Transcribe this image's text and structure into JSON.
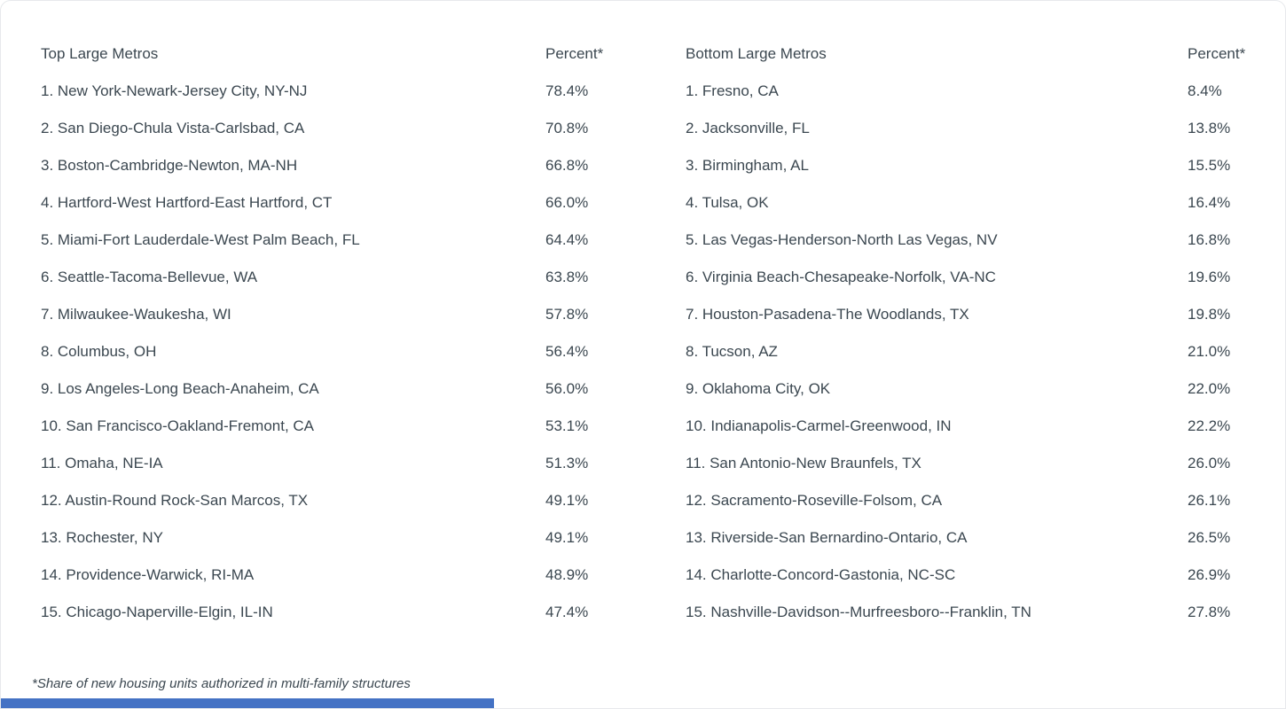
{
  "colors": {
    "text": "#3b4750",
    "accent_bar": "#4472c4",
    "card_border": "#e7e9ec",
    "background": "#ffffff"
  },
  "chart_data": {
    "type": "table",
    "tables": [
      {
        "name_header": "Top Large Metros",
        "percent_header": "Percent*",
        "rows": [
          {
            "label": "1. New York-Newark-Jersey City, NY-NJ",
            "percent": "78.4%"
          },
          {
            "label": "2. San Diego-Chula Vista-Carlsbad, CA",
            "percent": "70.8%"
          },
          {
            "label": "3. Boston-Cambridge-Newton, MA-NH",
            "percent": "66.8%"
          },
          {
            "label": "4. Hartford-West Hartford-East Hartford, CT",
            "percent": "66.0%"
          },
          {
            "label": "5. Miami-Fort Lauderdale-West Palm Beach, FL",
            "percent": "64.4%"
          },
          {
            "label": "6. Seattle-Tacoma-Bellevue, WA",
            "percent": "63.8%"
          },
          {
            "label": "7. Milwaukee-Waukesha, WI",
            "percent": "57.8%"
          },
          {
            "label": "8. Columbus, OH",
            "percent": "56.4%"
          },
          {
            "label": "9. Los Angeles-Long Beach-Anaheim, CA",
            "percent": "56.0%"
          },
          {
            "label": "10. San Francisco-Oakland-Fremont, CA",
            "percent": "53.1%"
          },
          {
            "label": "11. Omaha, NE-IA",
            "percent": "51.3%"
          },
          {
            "label": "12. Austin-Round Rock-San Marcos, TX",
            "percent": "49.1%"
          },
          {
            "label": "13. Rochester, NY",
            "percent": "49.1%"
          },
          {
            "label": "14. Providence-Warwick, RI-MA",
            "percent": "48.9%"
          },
          {
            "label": "15. Chicago-Naperville-Elgin, IL-IN",
            "percent": "47.4%"
          }
        ]
      },
      {
        "name_header": "Bottom Large Metros",
        "percent_header": "Percent*",
        "rows": [
          {
            "label": "1. Fresno, CA",
            "percent": "8.4%"
          },
          {
            "label": "2. Jacksonville, FL",
            "percent": "13.8%"
          },
          {
            "label": "3. Birmingham, AL",
            "percent": "15.5%"
          },
          {
            "label": "4. Tulsa, OK",
            "percent": "16.4%"
          },
          {
            "label": "5. Las Vegas-Henderson-North Las Vegas, NV",
            "percent": "16.8%"
          },
          {
            "label": "6. Virginia Beach-Chesapeake-Norfolk, VA-NC",
            "percent": "19.6%"
          },
          {
            "label": "7. Houston-Pasadena-The Woodlands, TX",
            "percent": "19.8%"
          },
          {
            "label": "8. Tucson, AZ",
            "percent": "21.0%"
          },
          {
            "label": "9. Oklahoma City, OK",
            "percent": "22.0%"
          },
          {
            "label": "10. Indianapolis-Carmel-Greenwood, IN",
            "percent": "22.2%"
          },
          {
            "label": "11. San Antonio-New Braunfels, TX",
            "percent": "26.0%"
          },
          {
            "label": "12. Sacramento-Roseville-Folsom, CA",
            "percent": "26.1%"
          },
          {
            "label": "13. Riverside-San Bernardino-Ontario, CA",
            "percent": "26.5%"
          },
          {
            "label": "14. Charlotte-Concord-Gastonia, NC-SC",
            "percent": "26.9%"
          },
          {
            "label": "15. Nashville-Davidson--Murfreesboro--Franklin, TN",
            "percent": "27.8%"
          }
        ]
      }
    ],
    "footnote": "*Share of new housing units authorized in multi-family structures"
  }
}
